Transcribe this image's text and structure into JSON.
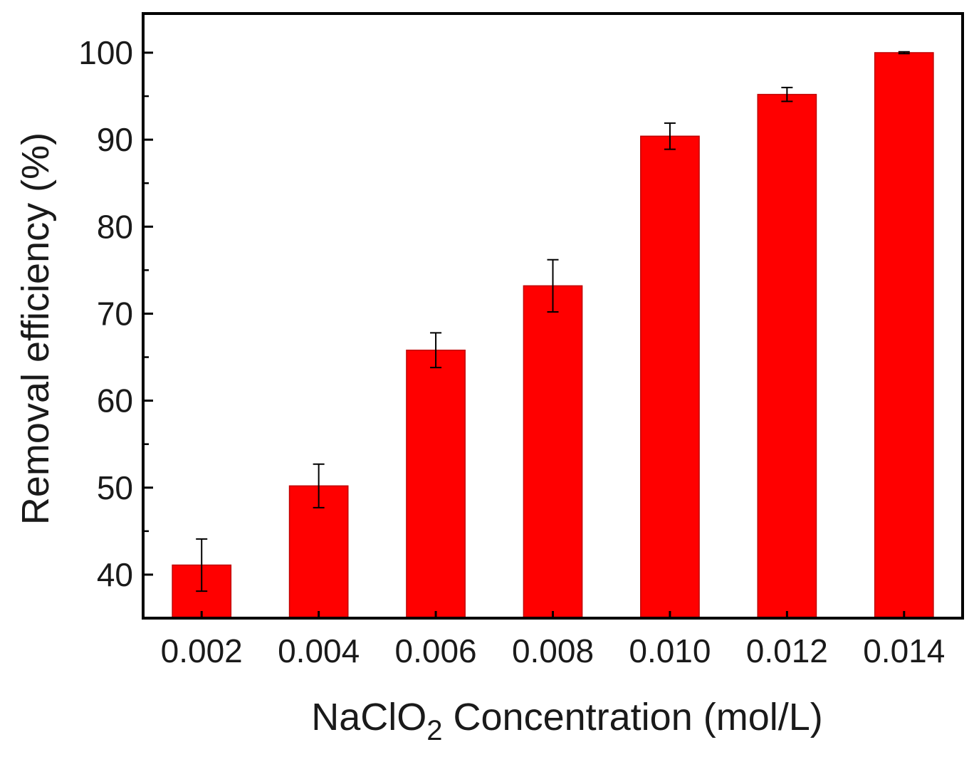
{
  "chart_data": {
    "type": "bar",
    "title": "",
    "xlabel_main": "NaClO",
    "xlabel_sub": "2",
    "xlabel_rest": " Concentration (mol/L)",
    "ylabel": "Removal efficiency (%)",
    "categories": [
      "0.002",
      "0.004",
      "0.006",
      "0.008",
      "0.010",
      "0.012",
      "0.014"
    ],
    "values": [
      41.1,
      50.2,
      65.8,
      73.2,
      90.4,
      95.2,
      100.0
    ],
    "errors": [
      3.0,
      2.5,
      2.0,
      3.0,
      1.5,
      0.8,
      0.1
    ],
    "ylim": [
      35,
      104.5
    ],
    "yticks": [
      40,
      50,
      60,
      70,
      80,
      90,
      100
    ],
    "bar_color": "#ff0000",
    "bar_edge_color": "#c00000"
  }
}
